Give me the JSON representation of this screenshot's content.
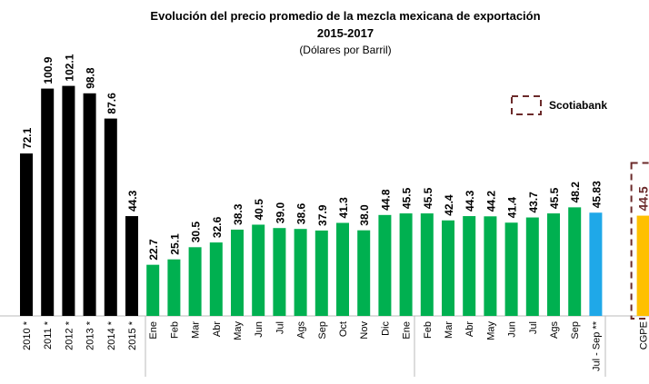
{
  "chart_data": {
    "type": "bar",
    "title": "Evolución del precio promedio de la mezcla mexicana de exportación",
    "subtitle": "2015-2017",
    "unit_label": "(Dólares por Barril)",
    "legend": {
      "name": "Scotiabank",
      "color": "#6b2a2a",
      "position": "upper right"
    },
    "categories": [
      "2010 *",
      "2011 *",
      "2012 *",
      "2013 *",
      "2014 *",
      "2015 *",
      "Ene",
      "Feb",
      "Mar",
      "Abr",
      "May",
      "Jun",
      "Jul",
      "Ags",
      "Sep",
      "Oct",
      "Nov",
      "Dic",
      "Ene",
      "Feb",
      "Mar",
      "Abr",
      "May",
      "Jun",
      "Jul",
      "Ags",
      "Sep",
      "Jul - Sep **",
      "CGPE"
    ],
    "values": [
      72.1,
      100.9,
      102.1,
      98.8,
      87.6,
      44.3,
      22.7,
      25.1,
      30.5,
      32.6,
      38.3,
      40.5,
      39.0,
      38.6,
      37.9,
      41.3,
      38.0,
      44.8,
      45.5,
      45.5,
      42.4,
      44.3,
      44.2,
      41.4,
      43.7,
      45.5,
      48.2,
      45.83,
      44.5
    ],
    "value_labels": [
      "72.1",
      "100.9",
      "102.1",
      "98.8",
      "87.6",
      "44.3",
      "22.7",
      "25.1",
      "30.5",
      "32.6",
      "38.3",
      "40.5",
      "39.0",
      "38.6",
      "37.9",
      "41.3",
      "38.0",
      "44.8",
      "45.5",
      "45.5",
      "42.4",
      "44.3",
      "44.2",
      "41.4",
      "43.7",
      "45.5",
      "48.2",
      "45.83",
      "44.5"
    ],
    "colors": [
      "#000000",
      "#000000",
      "#000000",
      "#000000",
      "#000000",
      "#000000",
      "#00b050",
      "#00b050",
      "#00b050",
      "#00b050",
      "#00b050",
      "#00b050",
      "#00b050",
      "#00b050",
      "#00b050",
      "#00b050",
      "#00b050",
      "#00b050",
      "#00b050",
      "#00b050",
      "#00b050",
      "#00b050",
      "#00b050",
      "#00b050",
      "#00b050",
      "#00b050",
      "#00b050",
      "#1fa8e8",
      "#ffc000"
    ],
    "value_label_colors": [
      "#000000",
      "#000000",
      "#000000",
      "#000000",
      "#000000",
      "#000000",
      "#000000",
      "#000000",
      "#000000",
      "#000000",
      "#000000",
      "#000000",
      "#000000",
      "#000000",
      "#000000",
      "#000000",
      "#000000",
      "#000000",
      "#000000",
      "#000000",
      "#000000",
      "#000000",
      "#000000",
      "#000000",
      "#000000",
      "#000000",
      "#000000",
      "#000000",
      "#6b2a2a"
    ],
    "ylim": [
      0,
      110
    ]
  }
}
